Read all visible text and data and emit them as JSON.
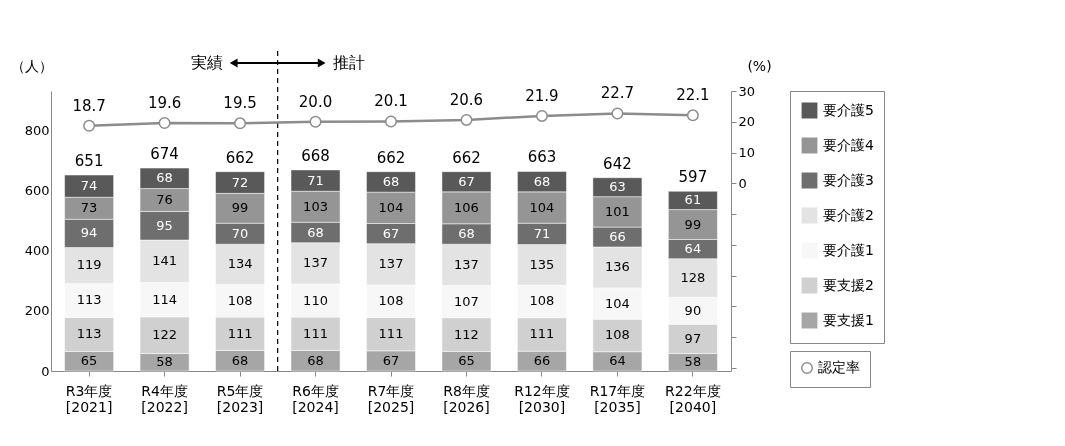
{
  "chart_data": {
    "type": "bar",
    "stacked": true,
    "categories": [
      "R3年度\n[2021]",
      "R4年度\n[2022]",
      "R5年度\n[2023]",
      "R6年度\n[2024]",
      "R7年度\n[2025]",
      "R8年度\n[2026]",
      "R12年度\n[2030]",
      "R17年度\n[2035]",
      "R22年度\n[2040]"
    ],
    "ylabel": "（人）",
    "y2label": "(%)",
    "ylim": [
      0,
      930
    ],
    "yticks": [
      0,
      200,
      400,
      600,
      800
    ],
    "y2lim": [
      -61,
      30
    ],
    "y2ticks": [
      {
        "value": -60,
        "label": null
      },
      {
        "value": -50,
        "label": null
      },
      {
        "value": -40,
        "label": null
      },
      {
        "value": -30,
        "label": null
      },
      {
        "value": -20,
        "label": null
      },
      {
        "value": -10,
        "label": null
      },
      0,
      10,
      20,
      30
    ],
    "series": [
      {
        "name": "要支援1",
        "color": "#a6a6a6",
        "values": [
          65,
          58,
          68,
          68,
          67,
          65,
          66,
          64,
          58
        ]
      },
      {
        "name": "要支援2",
        "color": "#d0d0d0",
        "values": [
          113,
          122,
          111,
          111,
          111,
          112,
          111,
          108,
          97
        ]
      },
      {
        "name": "要介護1",
        "color": "#f7f7f7",
        "values": [
          113,
          114,
          108,
          110,
          108,
          107,
          108,
          104,
          90
        ]
      },
      {
        "name": "要介護2",
        "color": "#e3e3e3",
        "values": [
          119,
          141,
          134,
          137,
          137,
          137,
          135,
          136,
          128
        ]
      },
      {
        "name": "要介護3",
        "color": "#6e6e6e",
        "values": [
          94,
          95,
          70,
          68,
          67,
          68,
          71,
          66,
          64
        ]
      },
      {
        "name": "要介護4",
        "color": "#959595",
        "values": [
          73,
          76,
          99,
          103,
          104,
          106,
          104,
          101,
          99
        ]
      },
      {
        "name": "要介護5",
        "color": "#595959",
        "values": [
          74,
          68,
          72,
          71,
          68,
          67,
          68,
          63,
          61
        ]
      },
      {
        "name": "認定率",
        "type": "line",
        "axis": "y2",
        "color": "#8c8c8c",
        "marker": "circle",
        "values": [
          18.7,
          19.6,
          19.5,
          20.0,
          20.1,
          20.6,
          21.9,
          22.7,
          22.1
        ],
        "value_labels": [
          "18.7",
          "19.6",
          "19.5",
          "20.0",
          "20.1",
          "20.6",
          "21.9",
          "22.7",
          "22.1"
        ]
      }
    ],
    "data_labels": true,
    "totals": [
      "651",
      "674",
      "662",
      "668",
      "662",
      "662",
      "663",
      "642",
      "597"
    ],
    "annotations": [
      "実績",
      "推計"
    ],
    "legend": "right",
    "grid": false
  }
}
